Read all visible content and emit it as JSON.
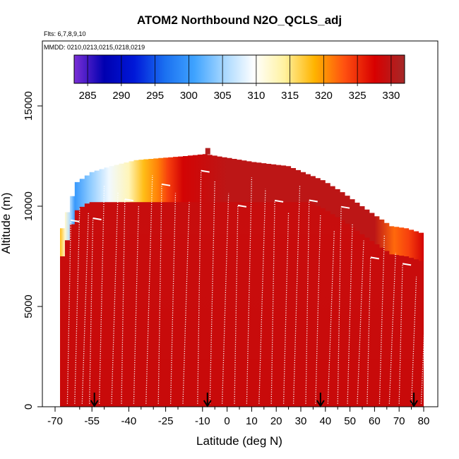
{
  "chart_data": {
    "type": "heatmap",
    "title": "ATOM2 Northbound N2O_QCLS_adj",
    "subtitle_flights": "Flts: 6,7,8,9,10",
    "subtitle_dates": "MMDD: 0210,0213,0215,0218,0219",
    "xlabel": "Latitude (deg N)",
    "ylabel": "Altitude (m)",
    "xlim": [
      -70,
      85
    ],
    "ylim": [
      0,
      17500
    ],
    "x_ticks": [
      -70,
      -55,
      -40,
      -25,
      -10,
      0,
      10,
      20,
      30,
      40,
      50,
      60,
      70,
      80
    ],
    "x_tick_labels": [
      "-70",
      "-55",
      "-40",
      "-25",
      "-10",
      "0",
      "10",
      "20",
      "30",
      "40",
      "50",
      "60",
      "70",
      "80"
    ],
    "x_minor_ticks": [
      -60,
      -50,
      -35,
      -30,
      -20,
      -5,
      5,
      15,
      25,
      35,
      45,
      55,
      65,
      75
    ],
    "y_ticks": [
      0,
      5000,
      10000,
      15000
    ],
    "y_tick_labels": [
      "0",
      "5000",
      "10000",
      "15000"
    ],
    "colorbar": {
      "range": [
        283,
        332
      ],
      "ticks": [
        285,
        290,
        295,
        300,
        305,
        310,
        315,
        320,
        325,
        330
      ],
      "tick_labels": [
        "285",
        "290",
        "295",
        "300",
        "305",
        "310",
        "315",
        "320",
        "325",
        "330"
      ],
      "colors": [
        "#7b2fd6",
        "#0000b0",
        "#0018d8",
        "#1a6ff0",
        "#3fa3ff",
        "#a8d8ff",
        "#ffffff",
        "#fff2a0",
        "#ffb400",
        "#ff5010",
        "#d80000",
        "#a52828"
      ]
    },
    "ceiling_profile": [
      {
        "lat": -68,
        "top": 8900
      },
      {
        "lat": -66,
        "top": 9700
      },
      {
        "lat": -64,
        "top": 10500
      },
      {
        "lat": -62,
        "top": 11200
      },
      {
        "lat": -56,
        "top": 11700
      },
      {
        "lat": -48,
        "top": 12000
      },
      {
        "lat": -38,
        "top": 12300
      },
      {
        "lat": -28,
        "top": 12400
      },
      {
        "lat": -18,
        "top": 12500
      },
      {
        "lat": -10,
        "top": 12600
      },
      {
        "lat": 0,
        "top": 12400
      },
      {
        "lat": 10,
        "top": 12200
      },
      {
        "lat": 24,
        "top": 12000
      },
      {
        "lat": 38,
        "top": 11300
      },
      {
        "lat": 46,
        "top": 10700
      },
      {
        "lat": 54,
        "top": 10000
      },
      {
        "lat": 60,
        "top": 9500
      },
      {
        "lat": 66,
        "top": 9000
      },
      {
        "lat": 72,
        "top": 8900
      },
      {
        "lat": 80,
        "top": 8600
      }
    ],
    "upper_layer": [
      {
        "lat": -68,
        "value": 318
      },
      {
        "lat": -66,
        "value": 312
      },
      {
        "lat": -64,
        "value": 306
      },
      {
        "lat": -62,
        "value": 300
      },
      {
        "lat": -56,
        "value": 304
      },
      {
        "lat": -48,
        "value": 309
      },
      {
        "lat": -40,
        "value": 313
      },
      {
        "lat": -34,
        "value": 318
      },
      {
        "lat": -28,
        "value": 321
      },
      {
        "lat": -24,
        "value": 324
      },
      {
        "lat": -18,
        "value": 328
      },
      {
        "lat": 0,
        "value": 330
      },
      {
        "lat": 40,
        "value": 330
      },
      {
        "lat": 60,
        "value": 330
      },
      {
        "lat": 68,
        "value": 322
      },
      {
        "lat": 74,
        "value": 324
      },
      {
        "lat": 80,
        "value": 328
      }
    ],
    "profile_latitudes": [
      -65,
      -62,
      -59,
      -56,
      -52,
      -47,
      -43,
      -38,
      -33,
      -28,
      -23,
      -18,
      -12,
      -7,
      -2,
      3,
      8,
      13,
      18,
      23,
      27,
      32,
      36,
      41,
      45,
      49,
      53,
      57,
      62,
      66,
      70,
      75,
      79
    ],
    "takeoff_markers": [
      -54,
      -8,
      38,
      76
    ]
  }
}
